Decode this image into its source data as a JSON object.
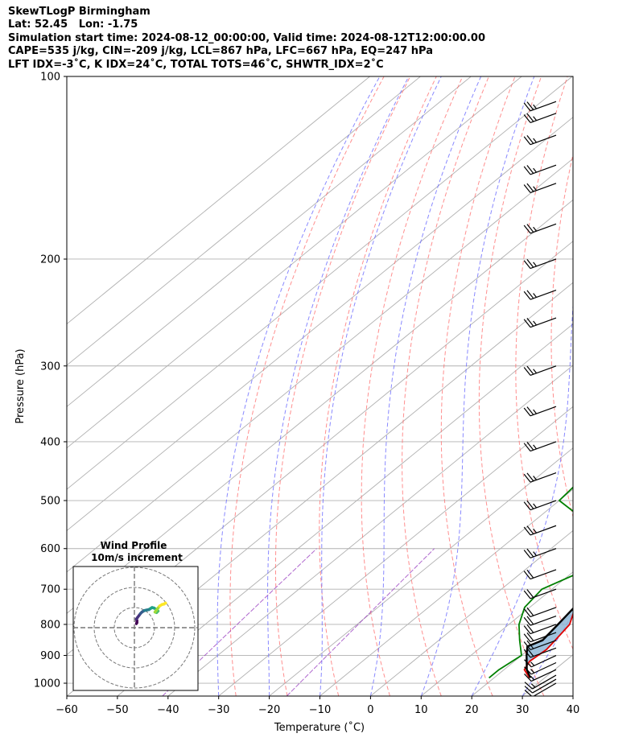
{
  "header": {
    "lines": [
      "SkewTLogP Birmingham",
      "Lat: 52.45   Lon: -1.75",
      "Simulation start time: 2024-08-12_00:00:00, Valid time: 2024-08-12T12:00:00.00",
      "CAPE=535 j/kg, CIN=-209 j/kg, LCL=867 hPa, LFC=667 hPa, EQ=247 hPa",
      "LFT IDX=-3˚C, K IDX=24˚C, TOTAL TOTS=46˚C, SHWTR_IDX=2˚C"
    ]
  },
  "colors": {
    "temperature": "#e00000",
    "dewpoint": "#008000",
    "parcel": "#000000",
    "cape_fill": "#8fb9d8",
    "cin_fill": "#f0a0a0",
    "dry_adiabats": "#ff6a6a",
    "moist_adiabats": "#6b6bff",
    "mixing_ratio": "#9a40c0",
    "isotherms": "#b0b0b0",
    "isobars": "#b0b0b0"
  },
  "chart_data": {
    "type": "line",
    "subtype": "skew-T log-P diagram",
    "xlabel": "Temperature (˚C)",
    "ylabel": "Pressure (hPa)",
    "xlim": [
      -60,
      40
    ],
    "ylim": [
      1050,
      100
    ],
    "yscale": "log",
    "xticks": [
      -60,
      -50,
      -40,
      -30,
      -20,
      -10,
      0,
      10,
      20,
      30,
      40
    ],
    "xtick_labels": [
      "−60",
      "−50",
      "−40",
      "−30",
      "−20",
      "−10",
      "0",
      "10",
      "20",
      "30",
      "40"
    ],
    "yticks": [
      100,
      200,
      300,
      400,
      500,
      600,
      700,
      800,
      900,
      1000
    ],
    "ytick_labels": [
      "100",
      "200",
      "300",
      "400",
      "500",
      "600",
      "700",
      "800",
      "900",
      "1000"
    ],
    "grid": true,
    "temperature": [
      [
        980,
        27
      ],
      [
        950,
        24
      ],
      [
        920,
        23
      ],
      [
        880,
        23.5
      ],
      [
        850,
        23
      ],
      [
        800,
        22
      ],
      [
        750,
        19
      ],
      [
        700,
        16
      ],
      [
        650,
        12.5
      ],
      [
        600,
        9
      ],
      [
        550,
        5.5
      ],
      [
        500,
        1.5
      ],
      [
        450,
        -2
      ],
      [
        400,
        -6.5
      ],
      [
        350,
        -12
      ],
      [
        300,
        -18
      ],
      [
        260,
        -24
      ],
      [
        240,
        -28
      ],
      [
        220,
        -34.5
      ],
      [
        200,
        -40
      ],
      [
        180,
        -46
      ],
      [
        160,
        -51
      ],
      [
        150,
        -52.5
      ],
      [
        140,
        -53.5
      ],
      [
        130,
        -54
      ],
      [
        120,
        -54
      ],
      [
        110,
        -55
      ],
      [
        100,
        -55
      ]
    ],
    "dewpoint": [
      [
        980,
        19
      ],
      [
        950,
        19
      ],
      [
        900,
        20
      ],
      [
        850,
        16
      ],
      [
        800,
        12
      ],
      [
        750,
        9
      ],
      [
        700,
        8
      ],
      [
        650,
        12
      ],
      [
        625,
        15.5
      ],
      [
        600,
        13
      ],
      [
        550,
        2.5
      ],
      [
        500,
        -10
      ],
      [
        450,
        -11
      ],
      [
        400,
        -11.5
      ],
      [
        350,
        -12
      ],
      [
        320,
        -15.5
      ],
      [
        300,
        -17
      ],
      [
        270,
        -19
      ],
      [
        250,
        -22
      ],
      [
        220,
        -28.5
      ],
      [
        200,
        -34
      ],
      [
        190,
        -37
      ],
      [
        180,
        -39.5
      ],
      [
        165,
        -44.5
      ],
      [
        155,
        -49
      ],
      [
        140,
        -56
      ],
      [
        130,
        -61
      ],
      [
        120,
        -65
      ],
      [
        110,
        -69
      ],
      [
        100,
        -73
      ]
    ],
    "parcel": [
      [
        980,
        27.2
      ],
      [
        950,
        24.5
      ],
      [
        900,
        21
      ],
      [
        870,
        19
      ],
      [
        850,
        20.5
      ],
      [
        800,
        19.7
      ],
      [
        750,
        18.8
      ],
      [
        700,
        17.6
      ],
      [
        650,
        16.3
      ],
      [
        600,
        14.5
      ],
      [
        550,
        12.1
      ],
      [
        500,
        9.2
      ],
      [
        450,
        5.4
      ],
      [
        400,
        0.6
      ],
      [
        350,
        -5.5
      ],
      [
        300,
        -13.2
      ],
      [
        250,
        -23.6
      ],
      [
        200,
        -37
      ],
      [
        150,
        -55
      ],
      [
        120,
        -68.5
      ],
      [
        100,
        -79
      ]
    ],
    "wind_barbs": {
      "pressures": [
        1000,
        985,
        970,
        950,
        925,
        900,
        875,
        850,
        825,
        800,
        775,
        750,
        700,
        650,
        600,
        550,
        500,
        450,
        400,
        350,
        300,
        250,
        225,
        200,
        175,
        150,
        140,
        125,
        115,
        110
      ],
      "speed_kt": [
        10,
        10,
        15,
        15,
        15,
        15,
        20,
        20,
        20,
        20,
        20,
        20,
        20,
        20,
        25,
        25,
        25,
        25,
        25,
        25,
        25,
        25,
        25,
        25,
        25,
        25,
        25,
        25,
        25,
        25
      ],
      "direction_deg": [
        240,
        240,
        240,
        245,
        245,
        245,
        250,
        250,
        250,
        250,
        250,
        250,
        250,
        250,
        250,
        250,
        250,
        250,
        250,
        250,
        250,
        250,
        250,
        250,
        250,
        250,
        250,
        250,
        250,
        250
      ]
    },
    "hodograph": {
      "title": "Wind Profile",
      "subtitle": "10m/s increment",
      "rings": 3,
      "points": [
        [
          0.4,
          0.8
        ],
        [
          0.5,
          1.0
        ],
        [
          0.5,
          1.4
        ],
        [
          0.4,
          1.7
        ],
        [
          0.6,
          2.0
        ],
        [
          0.9,
          2.4
        ],
        [
          1.2,
          2.8
        ],
        [
          1.5,
          3.1
        ],
        [
          1.8,
          3.3
        ],
        [
          2.0,
          3.4
        ],
        [
          2.4,
          3.5
        ],
        [
          2.9,
          3.6
        ],
        [
          3.2,
          3.8
        ],
        [
          3.5,
          4.0
        ],
        [
          3.9,
          3.9
        ],
        [
          4.4,
          3.6
        ],
        [
          4.7,
          3.3
        ],
        [
          4.4,
          3.0
        ],
        [
          4.1,
          3.1
        ],
        [
          4.3,
          3.4
        ],
        [
          4.7,
          3.9
        ],
        [
          5.0,
          4.3
        ],
        [
          5.5,
          4.6
        ],
        [
          5.9,
          4.7
        ],
        [
          6.2,
          4.9
        ]
      ]
    }
  }
}
